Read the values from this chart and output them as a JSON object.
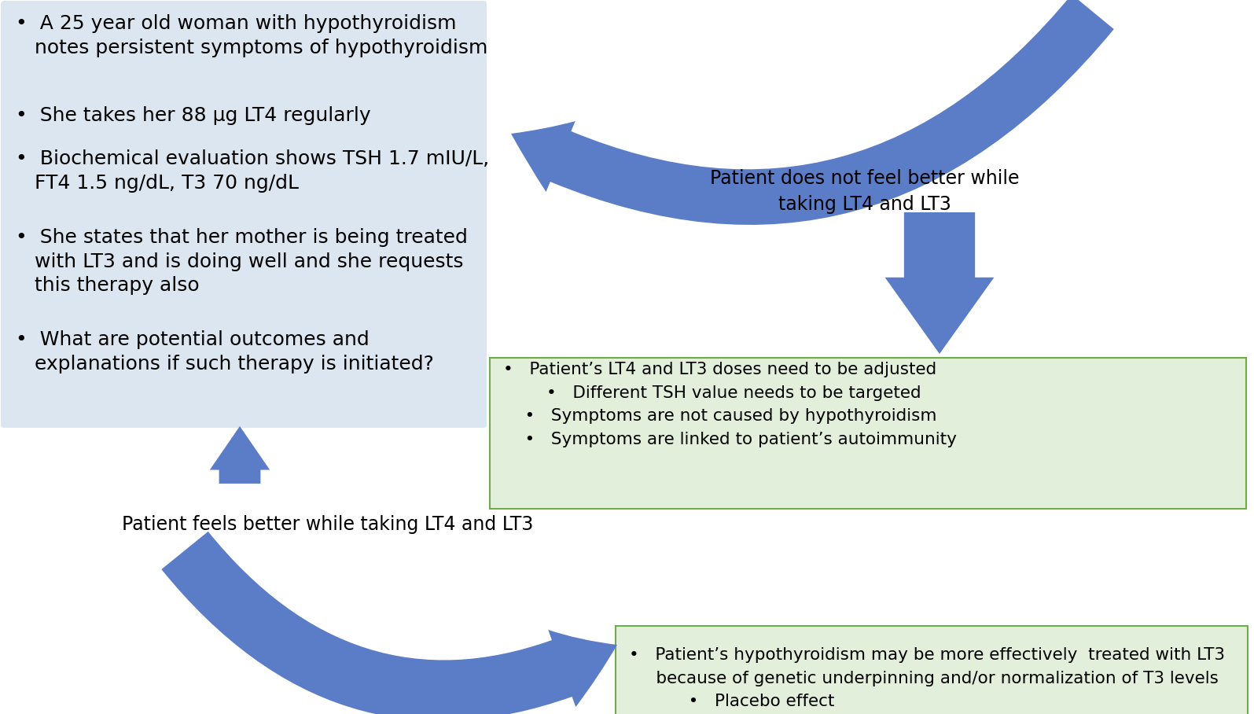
{
  "bg_color": "#ffffff",
  "left_box_color": "#dce6f1",
  "green_box_color": "#e2efda",
  "arrow_color": "#5b7dc8",
  "text_color": "#000000",
  "top_right_label": "Patient does not feel better while\ntaking LT4 and LT3",
  "middle_left_label": "Patient feels better while taking LT4 and LT3",
  "green_box1_lines": [
    "•   Patient’s LT4 and LT3 doses need to be adjusted",
    "        •   Different TSH value needs to be targeted",
    "    •   Symptoms are not caused by hypothyroidism",
    "    •   Symptoms are linked to patient’s autoimmunity"
  ],
  "green_box2_lines": [
    "•   Patient’s hypothyroidism may be more effectively  treated with LT3",
    "     because of genetic underpinning and/or normalization of T3 levels",
    "           •   Placebo effect"
  ],
  "left_texts": [
    {
      "text": "•  A 25 year old woman with hypothyroidism\n   notes persistent symptoms of hypothyroidism",
      "iy": 18
    },
    {
      "text": "•  She takes her 88 μg LT4 regularly",
      "iy": 135
    },
    {
      "text": "•  Biochemical evaluation shows TSH 1.7 mIU/L,\n   FT4 1.5 ng/dL, T3 70 ng/dL",
      "iy": 190
    },
    {
      "text": "•  She states that her mother is being treated\n   with LT3 and is doing well and she requests\n   this therapy also",
      "iy": 290
    },
    {
      "text": "•  What are potential outcomes and\n   explanations if such therapy is initiated?",
      "iy": 420
    }
  ]
}
